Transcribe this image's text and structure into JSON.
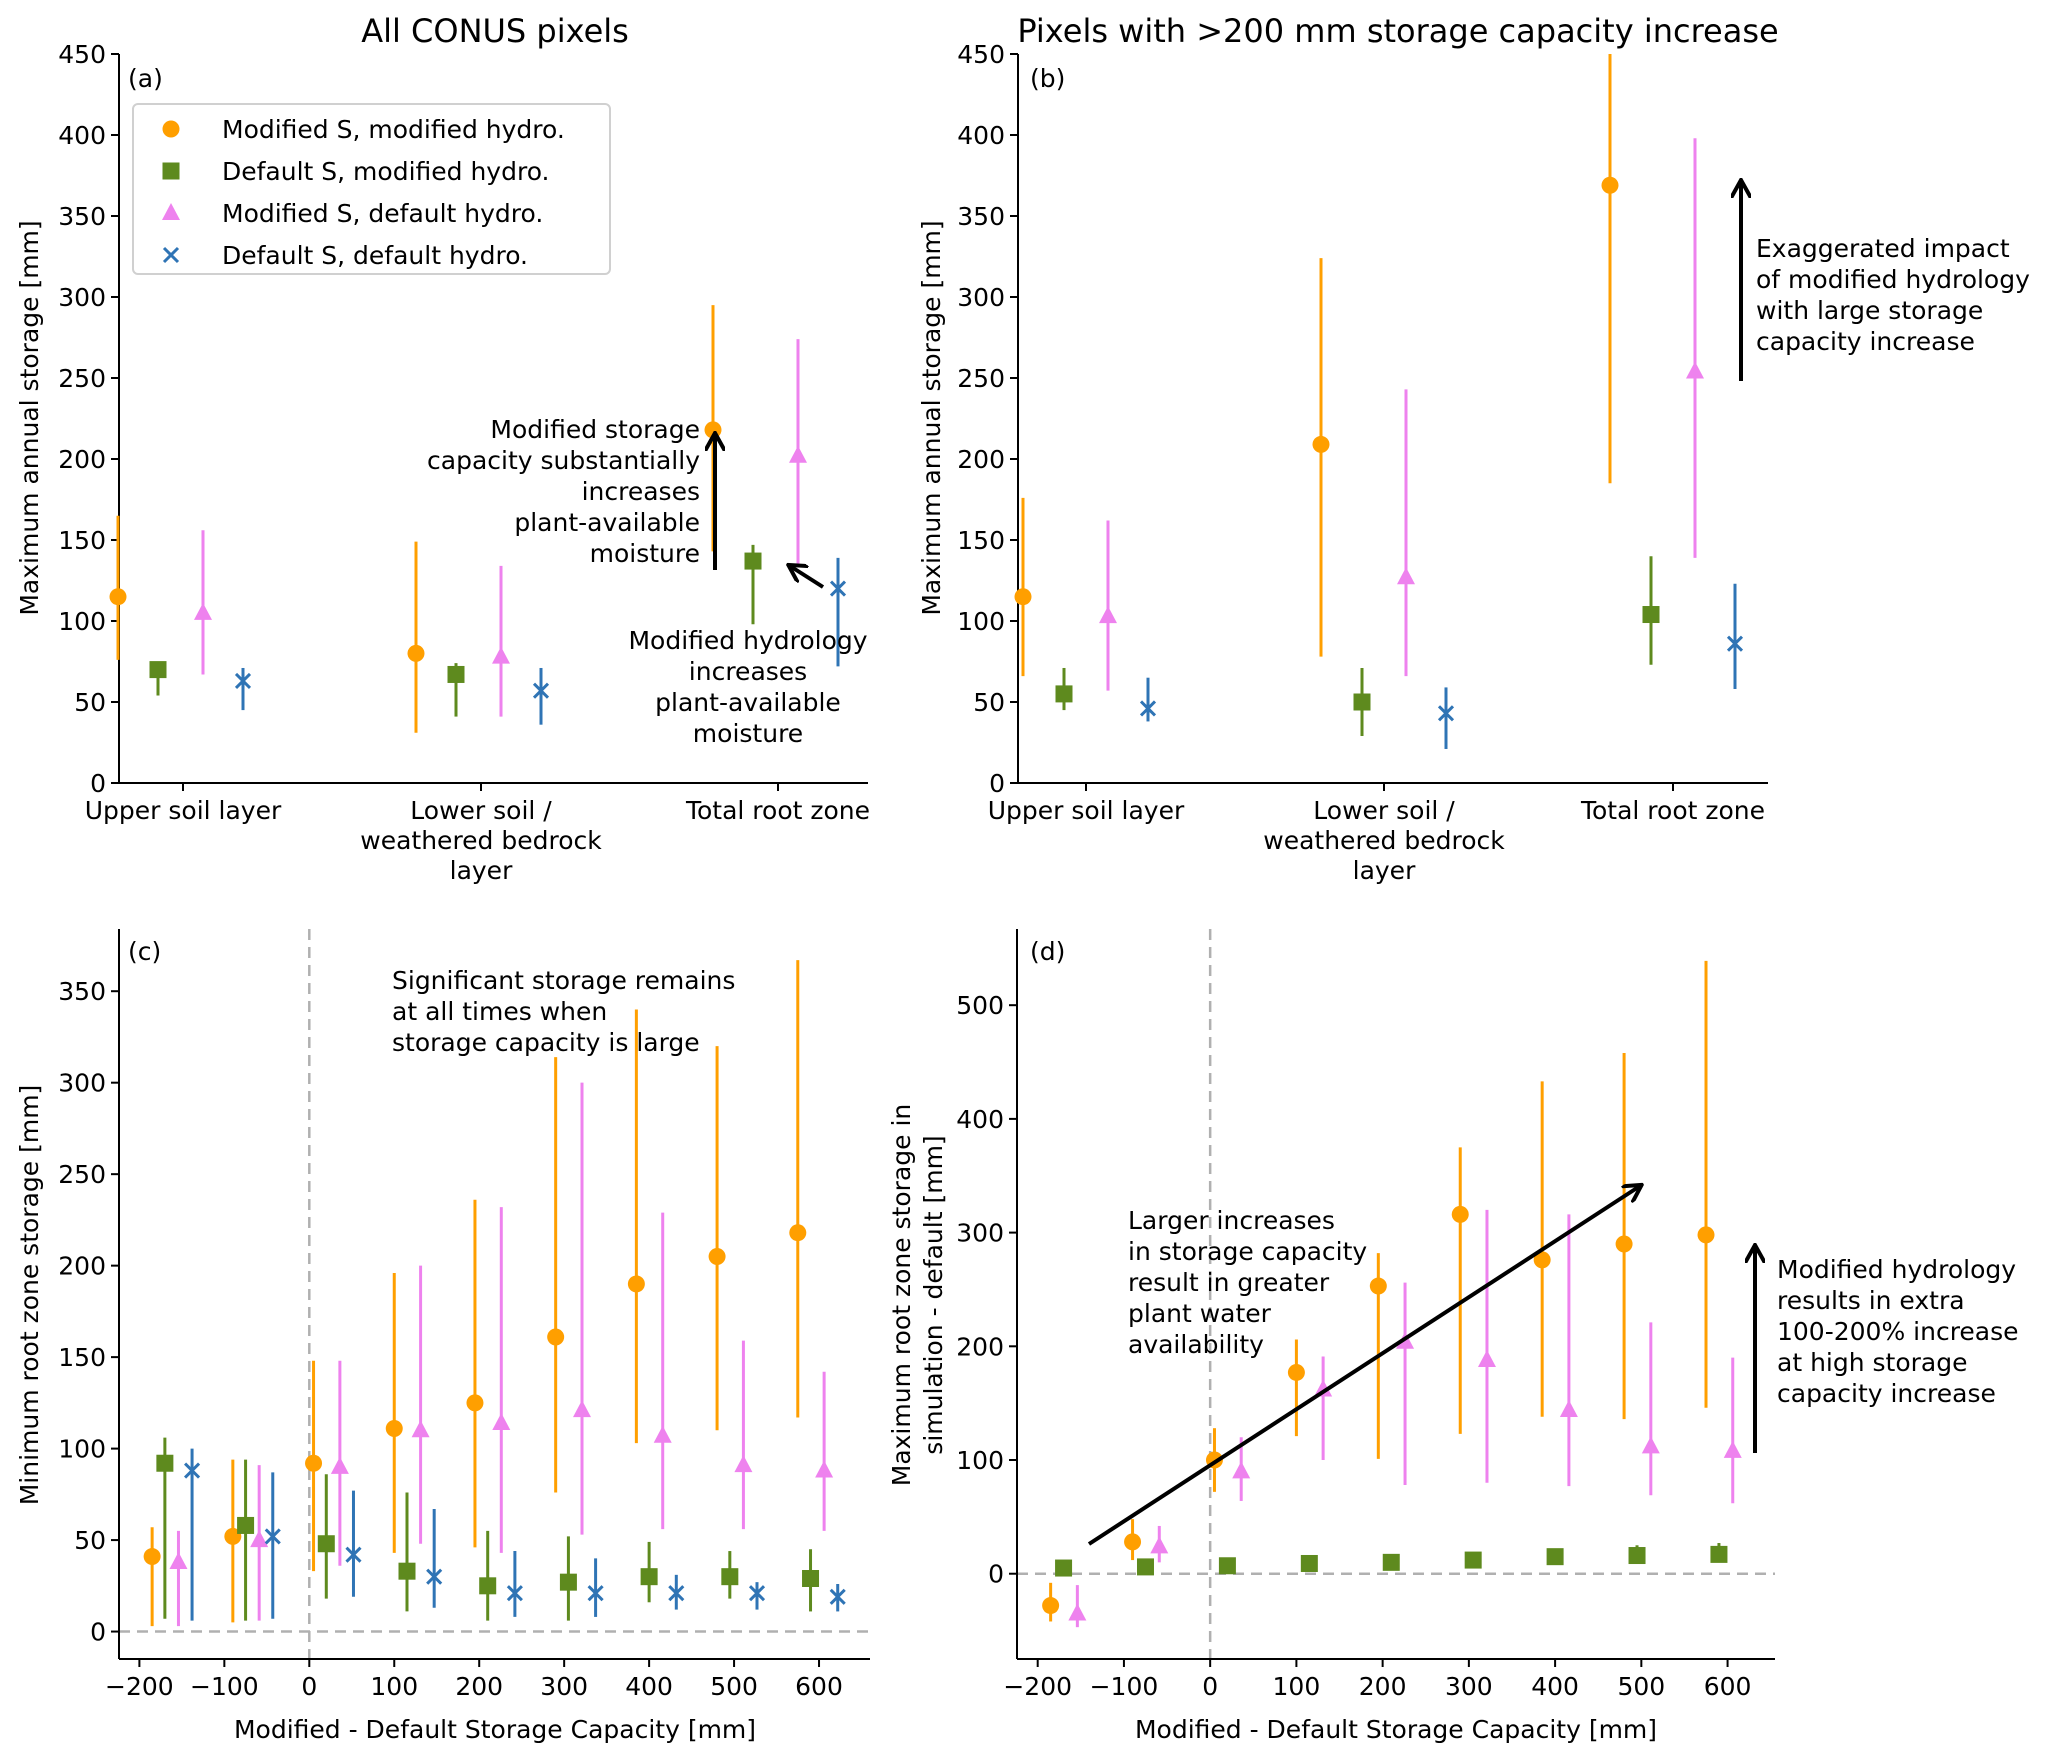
{
  "colors": {
    "mod_s_mod_h": "#ff9f00",
    "def_s_mod_h": "#5e8a1e",
    "mod_s_def_h": "#ee82ee",
    "def_s_def_h": "#2f74b5",
    "annotation": "#000000",
    "reference": "#b0b0b0"
  },
  "legend": [
    {
      "key": "mod_s_mod_h",
      "marker": "circle",
      "label": "Modified S, modified hydro."
    },
    {
      "key": "def_s_mod_h",
      "marker": "square",
      "label": "Default S, modified hydro."
    },
    {
      "key": "mod_s_def_h",
      "marker": "triangle",
      "label": "Modified S, default hydro."
    },
    {
      "key": "def_s_def_h",
      "marker": "x",
      "label": "Default S, default hydro."
    }
  ],
  "chart_data": [
    {
      "id": "a",
      "type": "scatter",
      "panel_tag": "(a)",
      "title": "All CONUS pixels",
      "xlabel": "",
      "ylabel": "Maximum annual storage [mm]",
      "ylim": [
        0,
        450
      ],
      "yticks": [
        0,
        50,
        100,
        150,
        200,
        250,
        300,
        350,
        400,
        450
      ],
      "categories": [
        "Upper soil layer",
        "Lower soil /\nweathered bedrock\nlayer",
        "Total root zone"
      ],
      "legend_position": "upper-left",
      "series": [
        {
          "key": "mod_s_mod_h",
          "name": "Modified S, modified hydro.",
          "values": [
            115,
            80,
            218
          ],
          "low": [
            76,
            31,
            143
          ],
          "high": [
            165,
            149,
            295
          ]
        },
        {
          "key": "def_s_mod_h",
          "name": "Default S, modified hydro.",
          "values": [
            70,
            67,
            137
          ],
          "low": [
            54,
            41,
            98
          ],
          "high": [
            75,
            74,
            147
          ]
        },
        {
          "key": "mod_s_def_h",
          "name": "Modified S, default hydro.",
          "values": [
            105,
            78,
            202
          ],
          "low": [
            67,
            41,
            135
          ],
          "high": [
            156,
            134,
            274
          ]
        },
        {
          "key": "def_s_def_h",
          "name": "Default S, default hydro.",
          "values": [
            63,
            57,
            120
          ],
          "low": [
            45,
            36,
            72
          ],
          "high": [
            71,
            71,
            139
          ]
        }
      ],
      "annotations": [
        {
          "text": "Modified storage\ncapacity substantially\nincreases\nplant-available\nmoisture"
        },
        {
          "text": "Modified hydrology\nincreases\nplant-available\nmoisture"
        }
      ]
    },
    {
      "id": "b",
      "type": "scatter",
      "panel_tag": "(b)",
      "title": "Pixels with >200 mm storage capacity increase",
      "xlabel": "",
      "ylabel": "Maximum annual storage [mm]",
      "ylim": [
        0,
        450
      ],
      "yticks": [
        0,
        50,
        100,
        150,
        200,
        250,
        300,
        350,
        400,
        450
      ],
      "categories": [
        "Upper soil layer",
        "Lower soil /\nweathered bedrock\nlayer",
        "Total root zone"
      ],
      "series": [
        {
          "key": "mod_s_mod_h",
          "name": "Modified S, modified hydro.",
          "values": [
            115,
            209,
            369
          ],
          "low": [
            66,
            78,
            185
          ],
          "high": [
            176,
            324,
            450
          ]
        },
        {
          "key": "def_s_mod_h",
          "name": "Default S, modified hydro.",
          "values": [
            55,
            50,
            104
          ],
          "low": [
            45,
            29,
            73
          ],
          "high": [
            71,
            71,
            140
          ]
        },
        {
          "key": "mod_s_def_h",
          "name": "Modified S, default hydro.",
          "values": [
            103,
            127,
            254
          ],
          "low": [
            57,
            66,
            139
          ],
          "high": [
            162,
            243,
            398
          ]
        },
        {
          "key": "def_s_def_h",
          "name": "Default S, default hydro.",
          "values": [
            46,
            43,
            86
          ],
          "low": [
            38,
            21,
            58
          ],
          "high": [
            65,
            59,
            123
          ]
        }
      ],
      "annotations": [
        {
          "text": "Exaggerated impact\nof modified hydrology\nwith large storage\ncapacity increase"
        }
      ]
    },
    {
      "id": "c",
      "type": "scatter",
      "panel_tag": "(c)",
      "title": "",
      "xlabel": "Modified - Default Storage Capacity [mm]",
      "ylabel": "Minimum root zone storage [mm]",
      "xlim": [
        -224,
        660
      ],
      "ylim": [
        -15,
        384
      ],
      "xticks": [
        -200,
        -100,
        0,
        100,
        200,
        300,
        400,
        500,
        600
      ],
      "yticks": [
        0,
        50,
        100,
        150,
        200,
        250,
        300,
        350
      ],
      "reference_lines": {
        "x": 0,
        "y": 0
      },
      "series": [
        {
          "key": "mod_s_mod_h",
          "name": "Modified S, modified hydro.",
          "x": [
            -185,
            -90,
            5,
            100,
            195,
            290,
            385,
            480,
            575
          ],
          "values": [
            41,
            52,
            92,
            111,
            125,
            161,
            190,
            205,
            218
          ],
          "low": [
            3,
            5,
            33,
            43,
            46,
            76,
            103,
            110,
            117
          ],
          "high": [
            57,
            94,
            148,
            196,
            236,
            314,
            340,
            320,
            367
          ]
        },
        {
          "key": "def_s_mod_h",
          "name": "Default S, modified hydro.",
          "x": [
            -170,
            -75,
            20,
            115,
            210,
            305,
            400,
            495,
            590
          ],
          "values": [
            92,
            58,
            48,
            33,
            25,
            27,
            30,
            30,
            29
          ],
          "low": [
            7,
            6,
            18,
            11,
            6,
            6,
            16,
            18,
            11
          ],
          "high": [
            106,
            94,
            86,
            76,
            55,
            52,
            49,
            44,
            45
          ]
        },
        {
          "key": "mod_s_def_h",
          "name": "Modified S, default hydro.",
          "x": [
            -154,
            -59,
            36,
            131,
            226,
            321,
            416,
            511,
            606
          ],
          "values": [
            38,
            50,
            90,
            110,
            114,
            121,
            107,
            91,
            88
          ],
          "low": [
            3,
            6,
            36,
            48,
            43,
            53,
            56,
            56,
            55
          ],
          "high": [
            55,
            91,
            148,
            200,
            232,
            300,
            229,
            159,
            142
          ]
        },
        {
          "key": "def_s_def_h",
          "name": "Default S, default hydro.",
          "x": [
            -138,
            -43,
            52,
            147,
            242,
            337,
            432,
            527,
            622
          ],
          "values": [
            88,
            52,
            42,
            30,
            21,
            21,
            21,
            21,
            19
          ],
          "low": [
            6,
            7,
            19,
            13,
            8,
            8,
            12,
            12,
            11
          ],
          "high": [
            100,
            87,
            77,
            67,
            44,
            40,
            31,
            27,
            26
          ]
        }
      ],
      "annotations": [
        {
          "text": "Significant storage remains\nat all times when\nstorage capacity is large"
        }
      ]
    },
    {
      "id": "d",
      "type": "scatter",
      "panel_tag": "(d)",
      "title": "",
      "xlabel": "Modified - Default Storage Capacity [mm]",
      "ylabel": "Maximum root zone storage in\nsimulation - default [mm]",
      "xlim": [
        -224,
        655
      ],
      "ylim": [
        -75,
        567
      ],
      "xticks": [
        -200,
        -100,
        0,
        100,
        200,
        300,
        400,
        500,
        600
      ],
      "yticks": [
        0,
        100,
        200,
        300,
        400,
        500
      ],
      "reference_lines": {
        "x": 0,
        "y": 0
      },
      "series": [
        {
          "key": "mod_s_mod_h",
          "name": "Modified S, modified hydro.",
          "x": [
            -185,
            -90,
            5,
            100,
            195,
            290,
            385,
            480,
            575
          ],
          "values": [
            -28,
            28,
            100,
            177,
            253,
            316,
            276,
            290,
            298
          ],
          "low": [
            -42,
            12,
            72,
            121,
            101,
            123,
            138,
            136,
            146
          ],
          "high": [
            -8,
            48,
            128,
            206,
            282,
            375,
            433,
            458,
            539
          ]
        },
        {
          "key": "def_s_mod_h",
          "name": "Default S, modified hydro.",
          "x": [
            -170,
            -75,
            20,
            115,
            210,
            305,
            400,
            495,
            590
          ],
          "values": [
            5,
            6,
            7,
            9,
            10,
            12,
            15,
            16,
            17
          ],
          "low": [
            3,
            3,
            4,
            5,
            6,
            7,
            9,
            10,
            11
          ],
          "high": [
            7,
            8,
            10,
            13,
            16,
            19,
            22,
            25,
            27
          ]
        },
        {
          "key": "mod_s_def_h",
          "name": "Modified S, default hydro.",
          "x": [
            -154,
            -59,
            36,
            131,
            226,
            321,
            416,
            511,
            606
          ],
          "values": [
            -35,
            24,
            90,
            162,
            204,
            188,
            144,
            112,
            108
          ],
          "low": [
            -47,
            10,
            64,
            100,
            78,
            80,
            77,
            69,
            62
          ],
          "high": [
            -10,
            42,
            120,
            191,
            256,
            320,
            316,
            221,
            190
          ]
        }
      ],
      "annotations": [
        {
          "text": "Larger increases\nin storage capacity\nresult in greater\nplant water\navailability"
        },
        {
          "text": "Modified hydrology\nresults in extra\n100-200% increase\nat high storage\ncapacity increase"
        }
      ]
    }
  ]
}
